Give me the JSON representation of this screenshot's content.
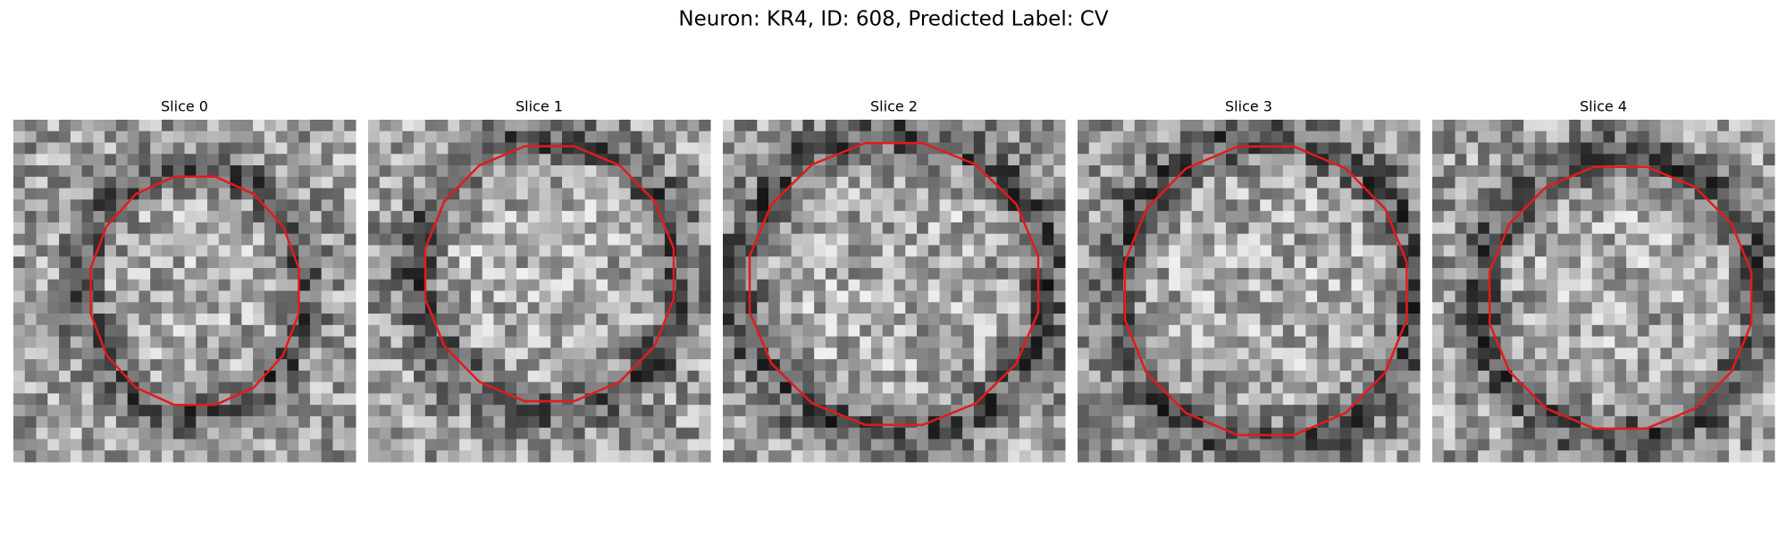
{
  "title": "Neuron: KR4, ID: 608, Predicted Label: CV",
  "panels": [
    {
      "title": "Slice 0"
    },
    {
      "title": "Slice 1"
    },
    {
      "title": "Slice 2"
    },
    {
      "title": "Slice 3"
    },
    {
      "title": "Slice 4"
    }
  ]
}
